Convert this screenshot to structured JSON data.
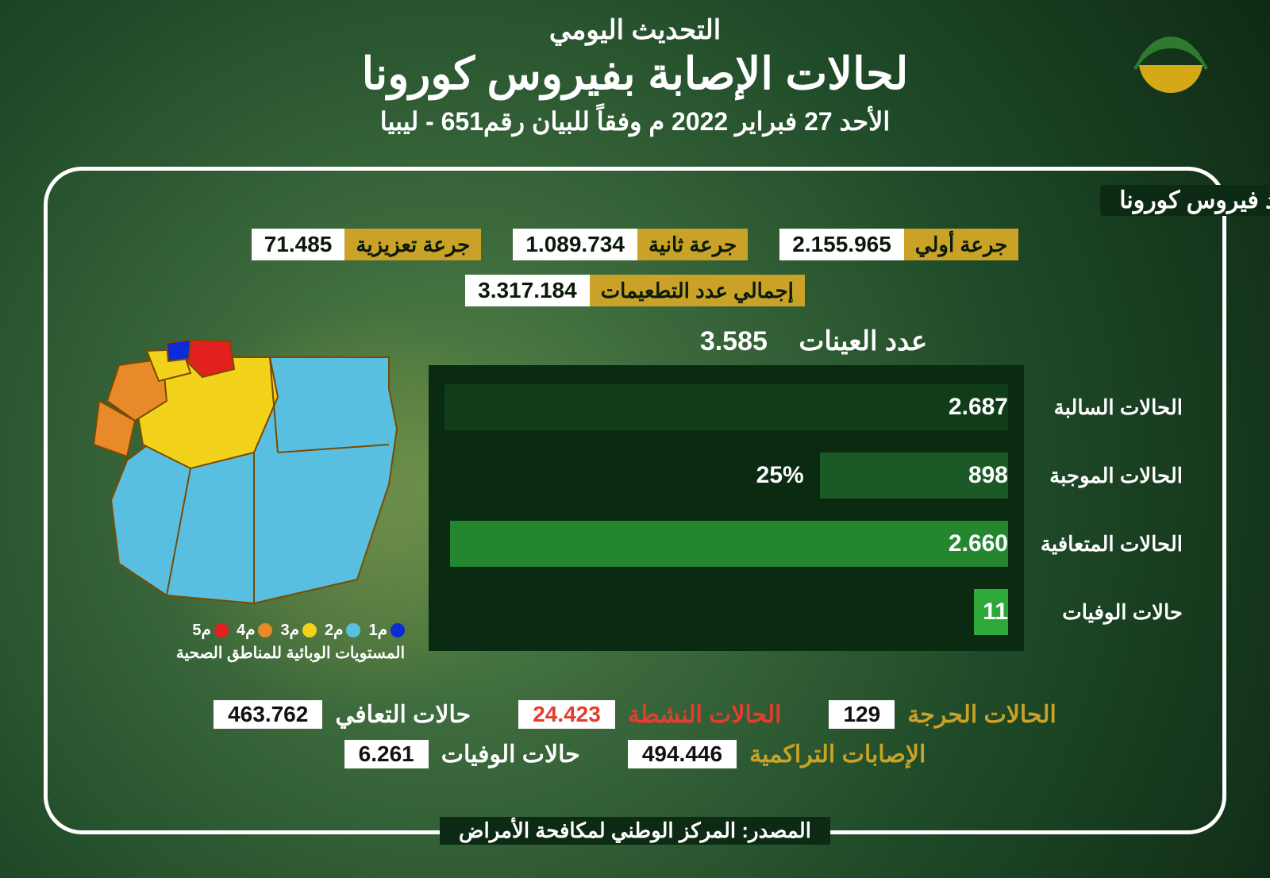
{
  "colors": {
    "gold": "#c9a227",
    "white": "#ffffff",
    "red": "#e63c2f",
    "chart_bg": "#0a2a12",
    "bar_colors": [
      "#103c18",
      "#1b5a26",
      "#24862f",
      "#2fa83a"
    ],
    "map_levels": {
      "m1": "#0b2bd6",
      "m2": "#59bfe0",
      "m3": "#f2d21a",
      "m4": "#e88a2a",
      "m5": "#e22020"
    }
  },
  "header": {
    "subtitle": "التحديث اليومي",
    "title": "لحالات الإصابة بفيروس كورونا",
    "date_line": "الأحد 27 فبراير 2022 م وفقاً للبيان رقم651 - ليبيا"
  },
  "vaccination": {
    "section_title": "إجمالي عدد المطعمين ضد فيروس كورونا",
    "dose1_label": "جرعة أولي",
    "dose1_value": "2.155.965",
    "dose2_label": "جرعة ثانية",
    "dose2_value": "1.089.734",
    "booster_label": "جرعة تعزيزية",
    "booster_value": "71.485",
    "total_label": "إجمالي عدد التطعيمات",
    "total_value": "3.317.184"
  },
  "chart": {
    "samples_label": "عدد العينات",
    "samples_value": "3.585",
    "max": 2687,
    "bars": [
      {
        "label": "الحالات السالبة",
        "value": 2687,
        "display": "2.687",
        "extra": ""
      },
      {
        "label": "الحالات الموجبة",
        "value": 898,
        "display": "898",
        "extra": "25%"
      },
      {
        "label": "الحالات المتعافية",
        "value": 2660,
        "display": "2.660",
        "extra": ""
      },
      {
        "label": "حالات الوفيات",
        "value": 11,
        "display": "11",
        "extra": ""
      }
    ]
  },
  "map_legend": {
    "items": [
      {
        "label": "م1",
        "key": "m1"
      },
      {
        "label": "م2",
        "key": "m2"
      },
      {
        "label": "م3",
        "key": "m3"
      },
      {
        "label": "م4",
        "key": "m4"
      },
      {
        "label": "م5",
        "key": "m5"
      }
    ],
    "caption": "المستويات الوبائية للمناطق الصحية"
  },
  "stats": {
    "critical_label": "الحالات الحرجة",
    "critical_value": "129",
    "active_label": "الحالات النشطة",
    "active_value": "24.423",
    "recovered_label": "حالات التعافي",
    "recovered_value": "463.762",
    "cumulative_label": "الإصابات التراكمية",
    "cumulative_value": "494.446",
    "deaths_label": "حالات الوفيات",
    "deaths_value": "6.261"
  },
  "source": "المصدر: المركز الوطني لمكافحة الأمراض"
}
